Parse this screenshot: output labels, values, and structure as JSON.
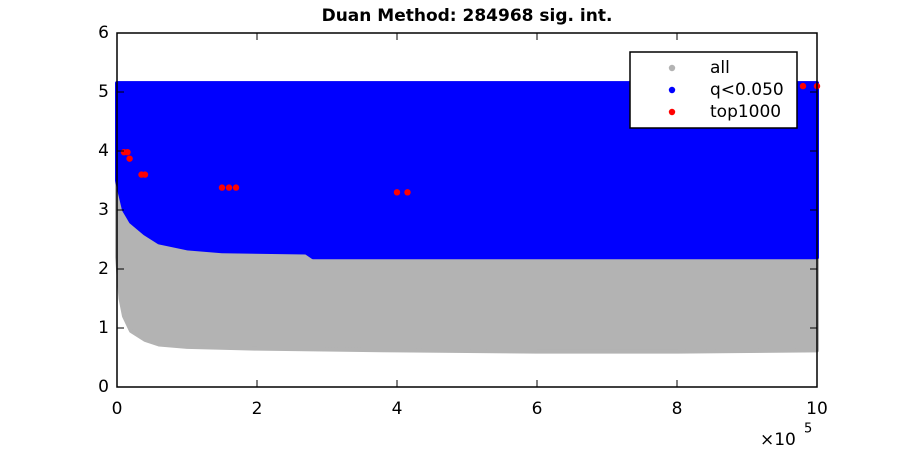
{
  "chart_data": {
    "type": "scatter",
    "title": "Duan Method: 284968 sig. int.",
    "xlim": [
      0,
      1000000
    ],
    "ylim": [
      0,
      6
    ],
    "xticks": [
      {
        "value": 0,
        "label": "0"
      },
      {
        "value": 200000,
        "label": "2"
      },
      {
        "value": 400000,
        "label": "4"
      },
      {
        "value": 600000,
        "label": "6"
      },
      {
        "value": 800000,
        "label": "8"
      },
      {
        "value": 1000000,
        "label": "10"
      }
    ],
    "yticks": [
      0,
      1,
      2,
      3,
      4,
      5,
      6
    ],
    "x_exponent": {
      "base": "×10",
      "power": "5"
    },
    "legend": "northeast",
    "series": [
      {
        "name": "all",
        "color": "#b3b3b3",
        "x": [
          0,
          5000,
          10000,
          20000,
          40000,
          60000,
          100000,
          200000,
          400000,
          600000,
          800000,
          1000000
        ],
        "lower": [
          2.2,
          1.5,
          1.2,
          0.95,
          0.8,
          0.72,
          0.68,
          0.65,
          0.62,
          0.6,
          0.6,
          0.62
        ],
        "upper": [
          5.15,
          5.15,
          5.15,
          5.15,
          5.15,
          5.15,
          5.15,
          5.15,
          5.15,
          5.15,
          5.15,
          5.15
        ]
      },
      {
        "name": "q<0.050",
        "color": "#0000ff",
        "x": [
          0,
          10000,
          20000,
          40000,
          60000,
          100000,
          150000,
          270000,
          280000,
          600000,
          1000000
        ],
        "lower": [
          3.5,
          3.0,
          2.8,
          2.6,
          2.45,
          2.35,
          2.3,
          2.28,
          2.2,
          2.2,
          2.2
        ],
        "upper": [
          5.15,
          5.15,
          5.15,
          5.15,
          5.15,
          5.15,
          5.15,
          5.15,
          5.15,
          5.15,
          5.15
        ]
      },
      {
        "name": "top1000",
        "color": "#ff0000",
        "x": [
          10000,
          15000,
          18000,
          35000,
          40000,
          150000,
          160000,
          170000,
          400000,
          415000,
          960000,
          980000,
          1000000
        ],
        "values": [
          3.98,
          3.98,
          3.87,
          3.6,
          3.6,
          3.38,
          3.38,
          3.38,
          3.3,
          3.3,
          5.1,
          5.1,
          5.1
        ]
      }
    ]
  }
}
